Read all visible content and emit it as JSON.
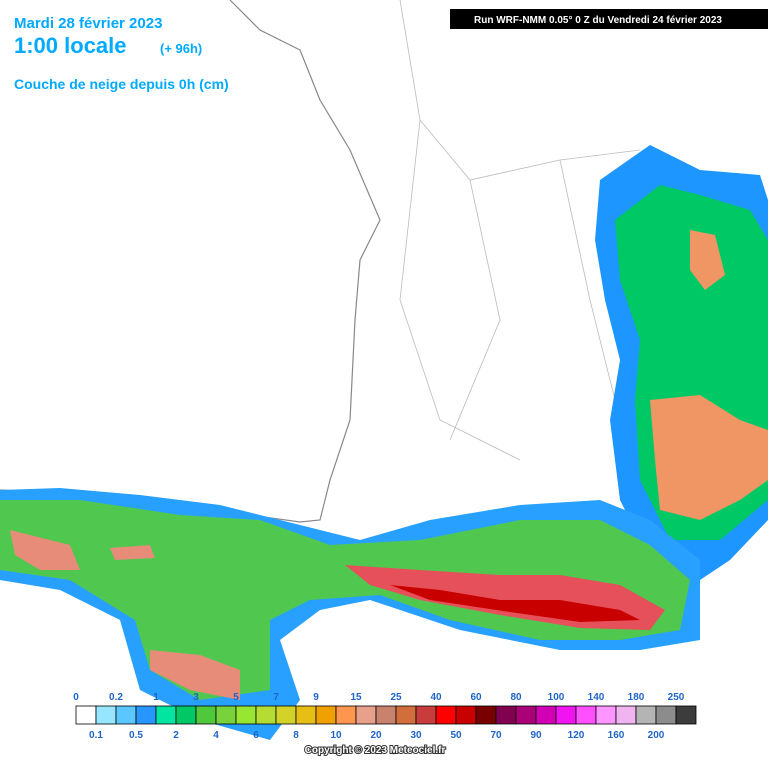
{
  "header": {
    "date": "Mardi 28 février 2023",
    "time": "1:00 locale",
    "lead": "(+ 96h)",
    "parameter": "Couche de neige depuis 0h (cm)",
    "run": "Run WRF-NMM 0.05° 0 Z du Vendredi 24 février 2023"
  },
  "legend": {
    "labels": [
      "0",
      "0.1",
      "0.2",
      "0.5",
      "1",
      "2",
      "3",
      "4",
      "5",
      "6",
      "7",
      "8",
      "9",
      "10",
      "15",
      "20",
      "25",
      "30",
      "40",
      "50",
      "60",
      "70",
      "80",
      "90",
      "100",
      "120",
      "140",
      "160",
      "180",
      "200",
      "250"
    ],
    "colors": [
      "#ffffff",
      "#96e6ff",
      "#5ac8ff",
      "#2896ff",
      "#00e6a0",
      "#00c864",
      "#50c83c",
      "#78d23c",
      "#96e632",
      "#b4dc32",
      "#d2d228",
      "#e6be14",
      "#f0a000",
      "#ff9650",
      "#e6a08c",
      "#c8826e",
      "#d26e3c",
      "#c83c3c",
      "#ff0000",
      "#c80000",
      "#780000",
      "#820050",
      "#aa0078",
      "#d200b4",
      "#f014f0",
      "#ff50ff",
      "#ff96ff",
      "#f0b4f0",
      "#b4b4b4",
      "#8c8c8c",
      "#3c3c3c"
    ]
  },
  "copyright": "Copyright © 2023 Meteociel.fr"
}
